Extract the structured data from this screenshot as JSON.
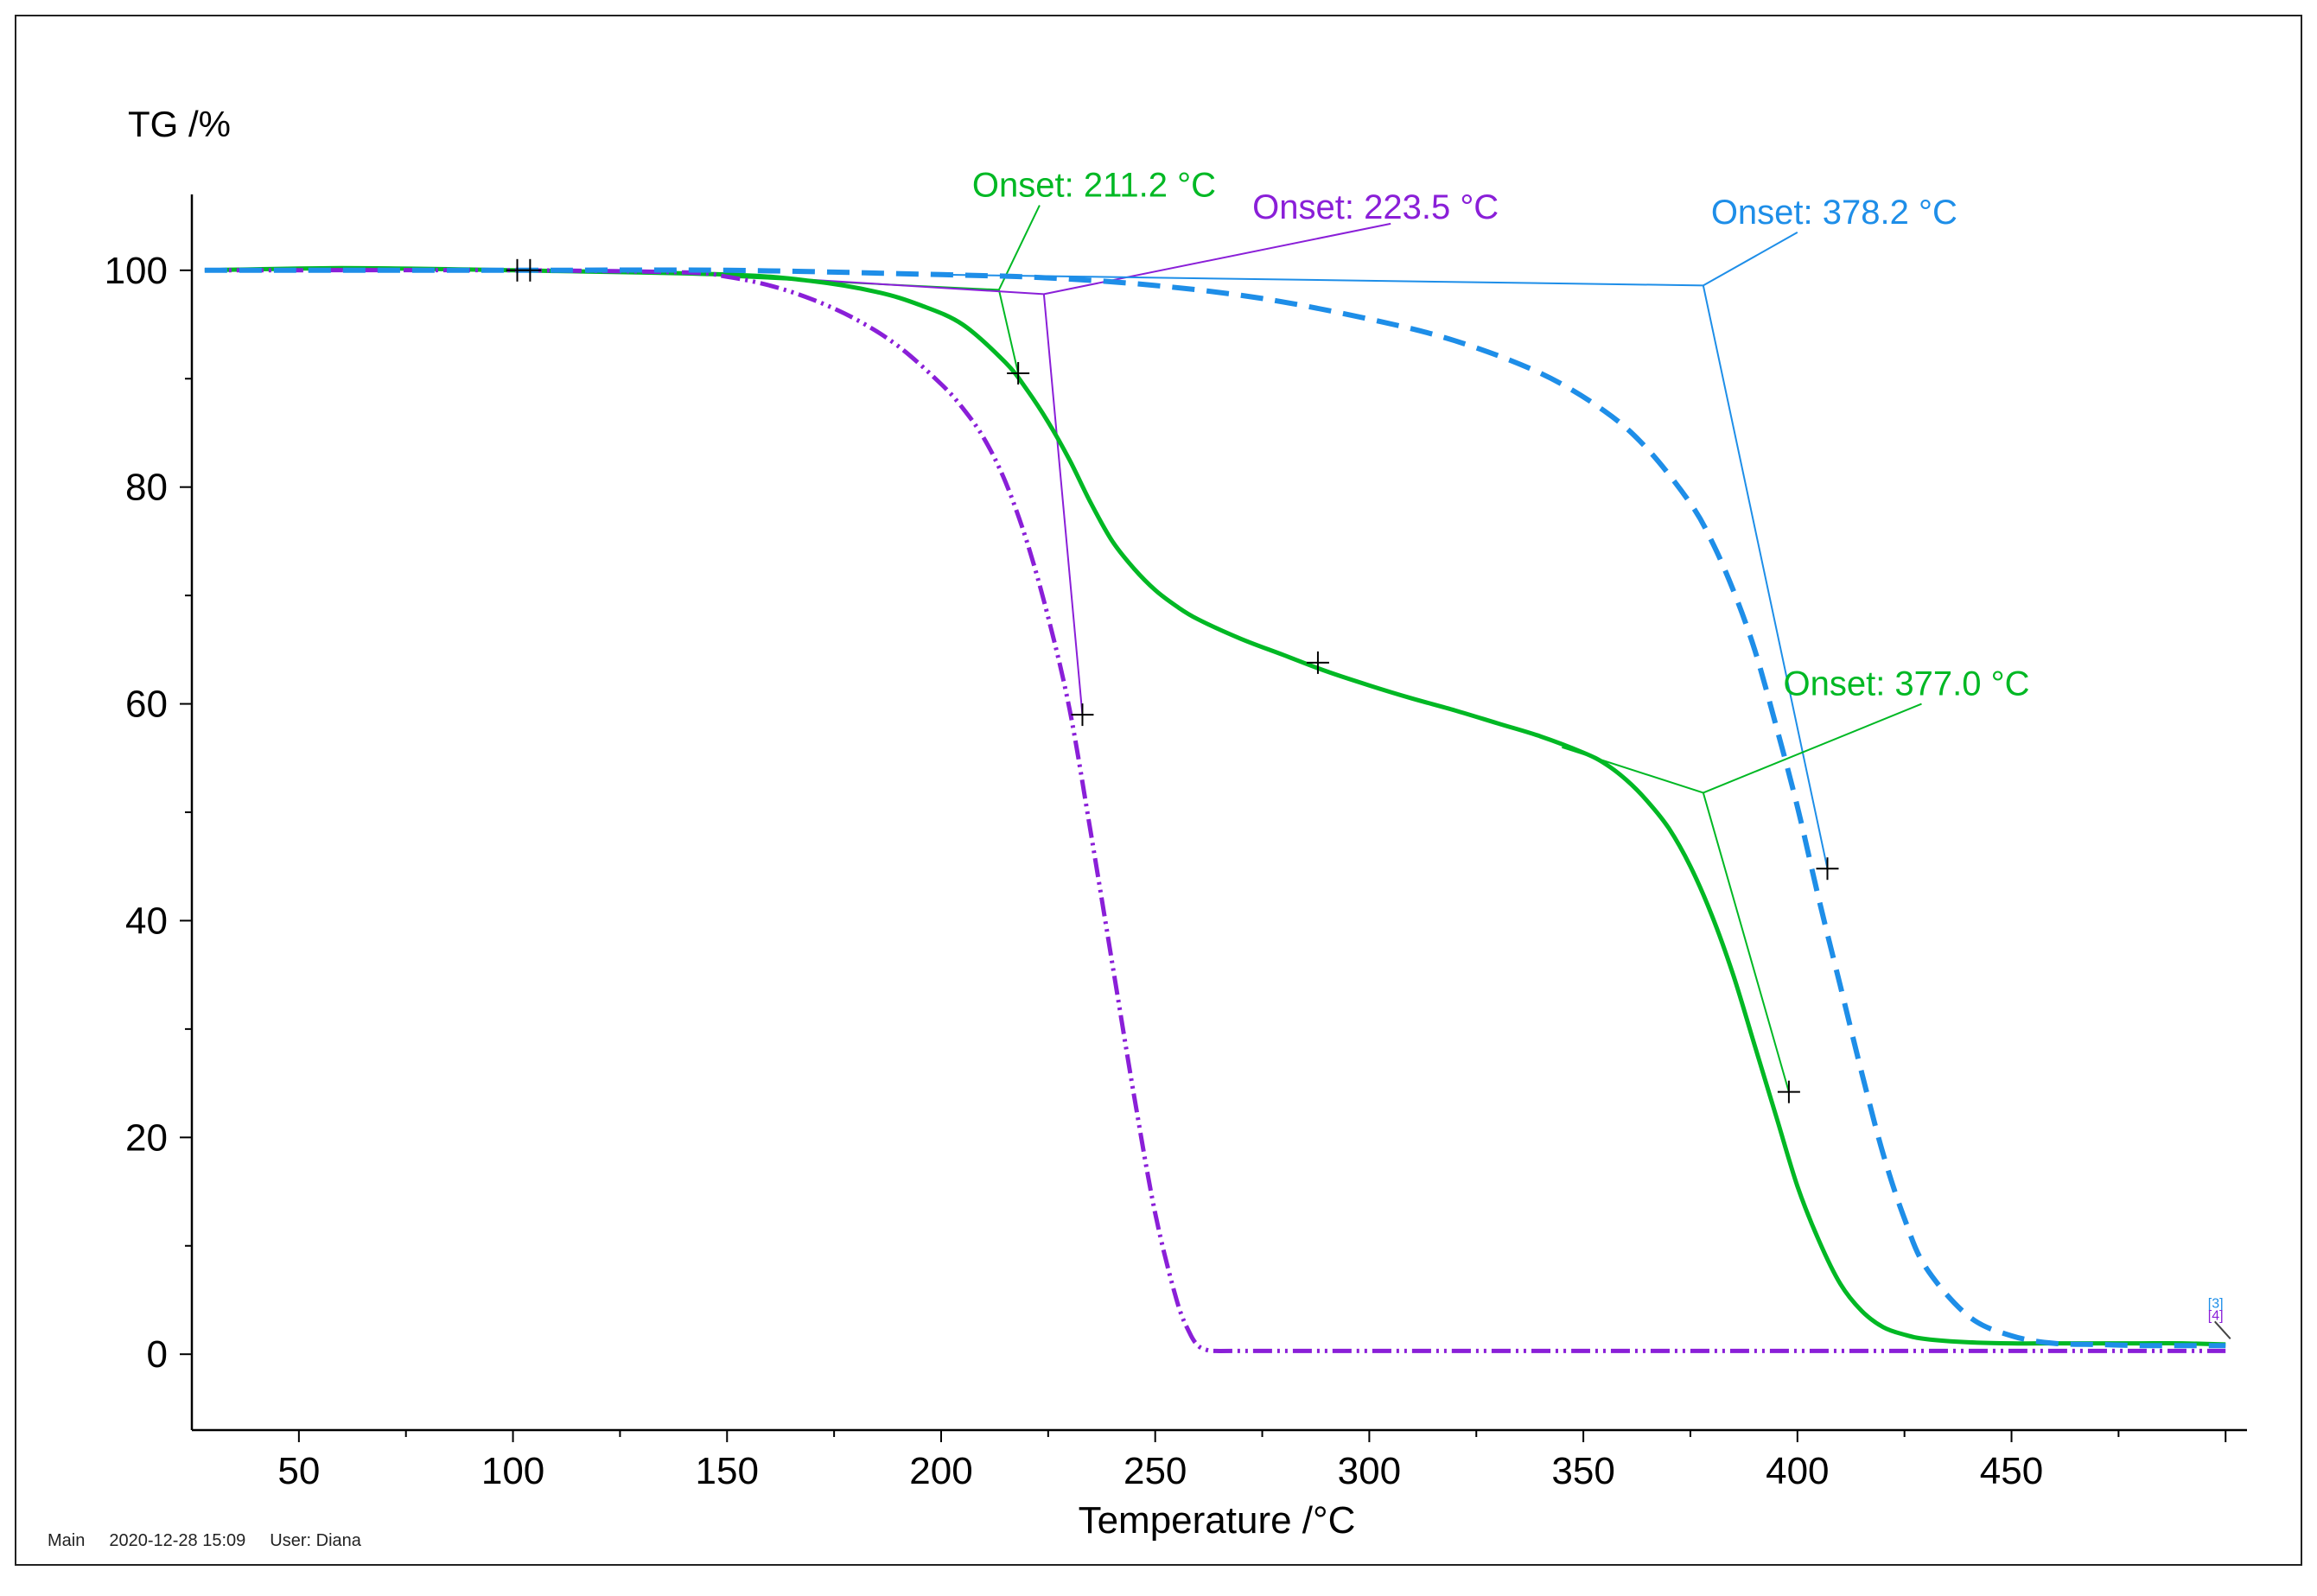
{
  "footer": {
    "main": "Main",
    "datetime": "2020-12-28 15:09",
    "user": "User: Diana"
  },
  "chart_data": {
    "type": "line",
    "title": "",
    "xlabel": "Temperature /°C",
    "ylabel": "TG /%",
    "xlim": [
      25,
      505
    ],
    "ylim": [
      -7,
      107
    ],
    "xticks": [
      50,
      100,
      150,
      200,
      250,
      300,
      350,
      400,
      450
    ],
    "yticks": [
      0,
      20,
      40,
      60,
      80,
      100
    ],
    "colors": {
      "green": "#00b824",
      "purple": "#8a1fd8",
      "blue": "#1e8ee8",
      "axis": "#000000"
    },
    "series": [
      {
        "name": "green-solid",
        "color": "#00b824",
        "style": "solid",
        "x": [
          28,
          60,
          100,
          150,
          170,
          185,
          195,
          205,
          215,
          220,
          225,
          230,
          235,
          240,
          245,
          250,
          255,
          260,
          270,
          280,
          290,
          300,
          310,
          320,
          330,
          340,
          350,
          355,
          360,
          365,
          370,
          375,
          380,
          385,
          390,
          395,
          400,
          405,
          410,
          415,
          420,
          425,
          430,
          440,
          450,
          460,
          470,
          480,
          490,
          500
        ],
        "y": [
          100,
          100.2,
          100,
          99.6,
          99,
          98,
          96.8,
          95,
          91.5,
          89,
          86,
          82.5,
          78.5,
          75,
          72.5,
          70.5,
          69,
          67.8,
          66,
          64.5,
          63,
          61.7,
          60.5,
          59.4,
          58.2,
          57,
          55.5,
          54.5,
          53,
          51,
          48.5,
          45,
          40.5,
          35,
          28.5,
          22,
          15.5,
          10.5,
          6.5,
          4,
          2.5,
          1.8,
          1.4,
          1.1,
          1.0,
          1.0,
          1.0,
          1.0,
          1.0,
          0.9
        ]
      },
      {
        "name": "purple-dashdot",
        "color": "#8a1fd8",
        "style": "dashdot",
        "x": [
          28,
          100,
          140,
          150,
          160,
          170,
          180,
          190,
          200,
          205,
          210,
          215,
          220,
          225,
          230,
          235,
          240,
          245,
          250,
          255,
          258,
          260,
          262,
          264,
          270,
          300,
          350,
          400,
          450,
          500
        ],
        "y": [
          100,
          100,
          99.8,
          99.4,
          98.6,
          97.3,
          95.5,
          93,
          89.5,
          87.3,
          84.5,
          80.5,
          75,
          68,
          59.5,
          48,
          36,
          24,
          13,
          5,
          2,
          0.8,
          0.4,
          0.3,
          0.3,
          0.3,
          0.3,
          0.3,
          0.3,
          0.3
        ]
      },
      {
        "name": "blue-dashed",
        "color": "#1e8ee8",
        "style": "dashed",
        "x": [
          28,
          100,
          150,
          200,
          225,
          250,
          275,
          300,
          320,
          340,
          355,
          365,
          375,
          380,
          385,
          390,
          395,
          400,
          405,
          410,
          415,
          420,
          425,
          430,
          440,
          450,
          460,
          470,
          480,
          490,
          500
        ],
        "y": [
          100,
          100,
          100,
          99.6,
          99.3,
          98.6,
          97.4,
          95.5,
          93.5,
          90.5,
          87,
          83.5,
          78.5,
          75,
          70.5,
          65,
          58,
          50.5,
          42,
          34,
          26,
          18.5,
          12.5,
          8,
          3.5,
          1.7,
          1.0,
          0.9,
          0.8,
          0.8,
          0.8
        ]
      }
    ],
    "markers": [
      {
        "series": "green-solid",
        "x": 101,
        "y": 100
      },
      {
        "series": "green-solid",
        "x": 104,
        "y": 100
      },
      {
        "series": "green-solid",
        "x": 218,
        "y": 90.5
      },
      {
        "series": "purple-dashdot",
        "x": 233,
        "y": 59
      },
      {
        "series": "green-solid",
        "x": 288,
        "y": 63.8
      },
      {
        "series": "green-solid",
        "x": 398,
        "y": 24.2
      },
      {
        "series": "blue-dashed",
        "x": 407,
        "y": 44.8
      }
    ],
    "onset_constructions": [
      {
        "color": "#00b824",
        "baseline": [
          [
            150,
            99.4
          ],
          [
            213.5,
            98.2
          ]
        ],
        "tangent": [
          [
            213.5,
            98.2
          ],
          [
            218,
            90.5
          ]
        ],
        "leader": [
          [
            213.5,
            98.2
          ],
          [
            223,
            106
          ]
        ],
        "label": "Onset: 211.2 °C"
      },
      {
        "color": "#8a1fd8",
        "baseline": [
          [
            150,
            99.6
          ],
          [
            224,
            97.8
          ]
        ],
        "tangent": [
          [
            224,
            97.8
          ],
          [
            233,
            59
          ]
        ],
        "leader": [
          [
            224,
            97.8
          ],
          [
            305,
            104.3
          ]
        ],
        "label": "Onset: 223.5 °C"
      },
      {
        "color": "#1e8ee8",
        "baseline": [
          [
            200,
            99.6
          ],
          [
            378,
            98.6
          ]
        ],
        "tangent": [
          [
            378,
            98.6
          ],
          [
            407,
            44.8
          ]
        ],
        "leader": [
          [
            378,
            98.6
          ],
          [
            400,
            103.5
          ]
        ],
        "label": "Onset: 378.2 °C"
      },
      {
        "color": "#00b824",
        "baseline": [
          [
            345,
            56
          ],
          [
            378,
            51.8
          ]
        ],
        "tangent": [
          [
            378,
            51.8
          ],
          [
            398,
            24.2
          ]
        ],
        "leader": [
          [
            378,
            51.8
          ],
          [
            429,
            60
          ]
        ],
        "label": "Onset: 377.0 °C"
      }
    ],
    "end_marker_labels": [
      "[3]",
      "[4]"
    ]
  }
}
